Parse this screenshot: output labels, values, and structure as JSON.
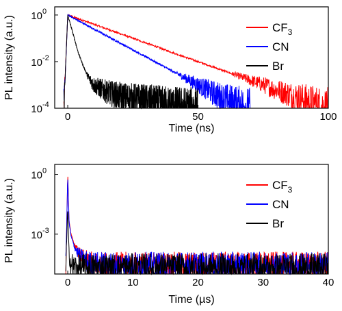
{
  "colors": {
    "CF3": "#ff0000",
    "CN": "#0000ff",
    "Br": "#000000"
  },
  "chart_data": [
    {
      "type": "line",
      "xlabel": "Time (ns)",
      "ylabel": "PL intensity (a.u.)",
      "xlim": [
        -5,
        100
      ],
      "ylim_log10": [
        -4,
        0.35
      ],
      "yscale": "log",
      "xticks": [
        0,
        50,
        100
      ],
      "yticks": [
        {
          "label": "10",
          "exp": "0",
          "value": 1
        },
        {
          "label": "10",
          "exp": "-2",
          "value": 0.01
        },
        {
          "label": "10",
          "exp": "-4",
          "value": 0.0001
        }
      ],
      "legend_position": "top-right",
      "series": [
        {
          "name": "CF3",
          "name_base": "CF",
          "name_sub": "3",
          "color": "#ff0000",
          "x": [
            -1.5,
            0,
            10,
            20,
            30,
            40,
            50,
            60,
            70,
            80,
            90,
            100
          ],
          "y": [
            0.0001,
            1.0,
            0.4,
            0.16,
            0.063,
            0.025,
            0.01,
            0.004,
            0.0016,
            0.00063,
            0.00025,
            0.0001
          ]
        },
        {
          "name": "CN",
          "color": "#0000ff",
          "x": [
            -1.5,
            0,
            10,
            20,
            30,
            40,
            50,
            60,
            70
          ],
          "y": [
            0.0001,
            1.0,
            0.25,
            0.063,
            0.016,
            0.004,
            0.001,
            0.00025,
            0.0001
          ]
        },
        {
          "name": "Br",
          "color": "#000000",
          "x": [
            -1.5,
            0,
            2,
            4,
            6,
            8,
            10,
            15,
            20,
            30,
            40,
            50
          ],
          "y": [
            0.0001,
            1.0,
            0.16,
            0.025,
            0.0063,
            0.002,
            0.001,
            0.0005,
            0.00032,
            0.0002,
            0.00013,
            0.0001
          ]
        }
      ]
    },
    {
      "type": "line",
      "xlabel": "Time (µs)",
      "ylabel": "PL intensity (a.u.)",
      "xlim": [
        -2,
        40
      ],
      "ylim_log10": [
        -5,
        0.5
      ],
      "yscale": "log",
      "xticks": [
        0,
        10,
        20,
        30,
        40
      ],
      "yticks": [
        {
          "label": "10",
          "exp": "0",
          "value": 1
        },
        {
          "label": "10",
          "exp": "-3",
          "value": 0.001
        }
      ],
      "legend_position": "top-right",
      "series": [
        {
          "name": "CF3",
          "name_base": "CF",
          "name_sub": "3",
          "color": "#ff0000",
          "x": [
            -0.3,
            0,
            0.2,
            0.5,
            1,
            1.5,
            2,
            3,
            5,
            40
          ],
          "y": [
            2e-05,
            1.0,
            0.005,
            0.001,
            0.0003,
            0.00013,
            7e-05,
            4e-05,
            3e-05,
            3e-05
          ]
        },
        {
          "name": "CN",
          "color": "#0000ff",
          "x": [
            -0.3,
            0,
            0.2,
            0.5,
            1,
            1.5,
            2,
            3,
            5,
            40
          ],
          "y": [
            2e-05,
            0.8,
            0.004,
            0.0008,
            0.00025,
            0.00012,
            7e-05,
            4e-05,
            3e-05,
            3e-05
          ]
        },
        {
          "name": "Br",
          "color": "#000000",
          "x": [
            -0.3,
            0,
            0.2,
            0.5,
            1,
            2,
            5,
            40
          ],
          "y": [
            2e-05,
            0.02,
            0.0001,
            3e-05,
            2e-05,
            2e-05,
            2e-05,
            2e-05
          ]
        }
      ]
    }
  ]
}
